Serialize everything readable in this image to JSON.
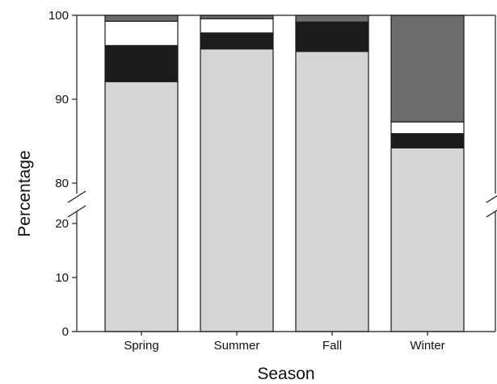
{
  "chart_data": {
    "type": "bar",
    "stacked": true,
    "title": "",
    "xlabel": "Season",
    "ylabel": "Percentage",
    "categories": [
      "Spring",
      "Summer",
      "Fall",
      "Winter"
    ],
    "axis_break": {
      "from": 20,
      "to": 80
    },
    "y_ticks": [
      0,
      10,
      20,
      80,
      90,
      100
    ],
    "ylim": [
      0,
      100
    ],
    "grid": false,
    "series": [
      {
        "color": "#d4d5d7",
        "values": [
          92.1,
          96.0,
          95.7,
          84.2
        ]
      },
      {
        "color": "#1c1c1c",
        "values": [
          4.3,
          1.9,
          3.5,
          1.7
        ]
      },
      {
        "color": "#ffffff",
        "values": [
          2.9,
          1.7,
          0.0,
          1.4
        ]
      },
      {
        "color": "#6d6d6d",
        "values": [
          0.7,
          0.4,
          0.8,
          12.7
        ]
      }
    ]
  }
}
